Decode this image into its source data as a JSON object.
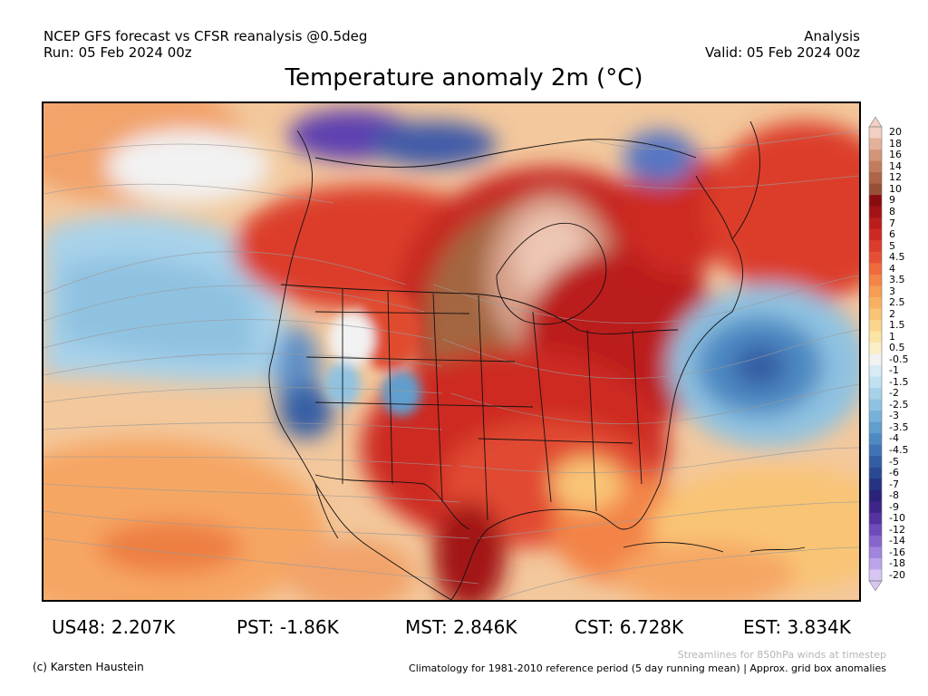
{
  "header": {
    "line1": "NCEP GFS forecast vs CFSR reanalysis @0.5deg",
    "line2": "Run: 05 Feb 2024 00z",
    "right1": "Analysis",
    "right2": "Valid: 05 Feb 2024 00z"
  },
  "title": "Temperature anomaly 2m (°C)",
  "colorbar": {
    "labels": [
      "20",
      "18",
      "16",
      "14",
      "12",
      "10",
      "9",
      "8",
      "7",
      "6",
      "5",
      "4.5",
      "4",
      "3.5",
      "3",
      "2.5",
      "2",
      "1.5",
      "1",
      "0.5",
      "-0.5",
      "-1",
      "-1.5",
      "-2",
      "-2.5",
      "-3",
      "-3.5",
      "-4",
      "-4.5",
      "-5",
      "-6",
      "-7",
      "-8",
      "-9",
      "-10",
      "-12",
      "-14",
      "-16",
      "-18",
      "-20"
    ],
    "colors": [
      "#f2cfc2",
      "#e3b199",
      "#d39578",
      "#c17c5e",
      "#ad6448",
      "#974f36",
      "#8a0c10",
      "#a31216",
      "#bb1c1c",
      "#cd2a23",
      "#dc3c2c",
      "#e64f33",
      "#ee6a3b",
      "#f38347",
      "#f69c53",
      "#f8b163",
      "#f9c476",
      "#fad58b",
      "#fbe4a4",
      "#fbefc8",
      "#f2f2f2",
      "#d8ebf5",
      "#c1e0f1",
      "#a8d2ea",
      "#8fc2e1",
      "#76b1d8",
      "#609ece",
      "#4e89c2",
      "#3f73b4",
      "#345ea4",
      "#2b4993",
      "#253380",
      "#2b237a",
      "#3f2489",
      "#5433a0",
      "#6d4bb8",
      "#8665cc",
      "#a184dd",
      "#bca4ea",
      "#d7c6f4"
    ]
  },
  "stats": {
    "us48": "US48: 2.207K",
    "pst": "PST: -1.86K",
    "mst": "MST: 2.846K",
    "cst": "CST: 6.728K",
    "est": "EST: 3.834K"
  },
  "footer": {
    "left": "(c) Karsten Haustein",
    "right1": "Streamlines for 850hPa winds at timestep",
    "right2": "Climatology for 1981-2010 reference period (5 day running mean) | Approx. grid box anomalies"
  }
}
